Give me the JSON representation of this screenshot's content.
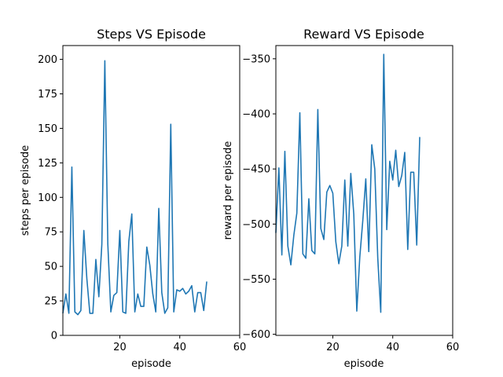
{
  "chart_data": [
    {
      "type": "line",
      "title": "Steps VS Episode",
      "xlabel": "episode",
      "ylabel": "steps per episode",
      "xlim": [
        1,
        60
      ],
      "ylim": [
        0,
        210
      ],
      "xticks": [
        20,
        40,
        60
      ],
      "xtick_labels": [
        "20",
        "40",
        "60"
      ],
      "yticks": [
        0,
        25,
        50,
        75,
        100,
        125,
        150,
        175,
        200
      ],
      "ytick_labels": [
        "0",
        "25",
        "50",
        "75",
        "100",
        "125",
        "150",
        "175",
        "200"
      ],
      "grid": false,
      "color": "#1f77b4",
      "series": [
        {
          "x": [
            1,
            2,
            3,
            4,
            5,
            6,
            7,
            8,
            9,
            10,
            11,
            12,
            13,
            14,
            15,
            16,
            17,
            18,
            19,
            20,
            21,
            22,
            23,
            24,
            25,
            26,
            27,
            28,
            29,
            30,
            31,
            32,
            33,
            34,
            35,
            36,
            37,
            38,
            39,
            40,
            41,
            42,
            43,
            44,
            45,
            46,
            47,
            48,
            49
          ],
          "y": [
            16,
            30,
            16,
            122,
            17,
            15,
            18,
            76,
            41,
            16,
            16,
            55,
            28,
            66,
            199,
            66,
            17,
            29,
            31,
            76,
            17,
            16,
            68,
            88,
            17,
            30,
            21,
            21,
            64,
            51,
            30,
            17,
            92,
            31,
            16,
            20,
            153,
            17,
            33,
            32,
            34,
            30,
            32,
            36,
            17,
            31,
            31,
            18,
            39
          ]
        }
      ]
    },
    {
      "type": "line",
      "title": "Reward VS Episode",
      "xlabel": "episode",
      "ylabel": "reward per episode",
      "xlim": [
        1,
        60
      ],
      "ylim": [
        -601,
        -338
      ],
      "xticks": [
        20,
        40,
        60
      ],
      "xtick_labels": [
        "20",
        "40",
        "60"
      ],
      "yticks": [
        -600,
        -550,
        -500,
        -450,
        -400,
        -350
      ],
      "ytick_labels": [
        "−600",
        "−550",
        "−500",
        "−450",
        "−400",
        "−350"
      ],
      "grid": false,
      "color": "#1f77b4",
      "series": [
        {
          "x": [
            1,
            2,
            3,
            4,
            5,
            6,
            7,
            8,
            9,
            10,
            11,
            12,
            13,
            14,
            15,
            16,
            17,
            18,
            19,
            20,
            21,
            22,
            23,
            24,
            25,
            26,
            27,
            28,
            29,
            30,
            31,
            32,
            33,
            34,
            35,
            36,
            37,
            38,
            39,
            40,
            41,
            42,
            43,
            44,
            45,
            46,
            47,
            48,
            49
          ],
          "y": [
            -508,
            -449,
            -528,
            -434,
            -520,
            -537,
            -510,
            -490,
            -399,
            -527,
            -531,
            -477,
            -524,
            -527,
            -396,
            -504,
            -514,
            -471,
            -465,
            -472,
            -516,
            -536,
            -520,
            -460,
            -520,
            -454,
            -491,
            -579,
            -530,
            -497,
            -459,
            -525,
            -428,
            -450,
            -531,
            -580,
            -346,
            -505,
            -443,
            -460,
            -433,
            -466,
            -456,
            -435,
            -523,
            -453,
            -453,
            -519,
            -421
          ]
        }
      ]
    }
  ]
}
